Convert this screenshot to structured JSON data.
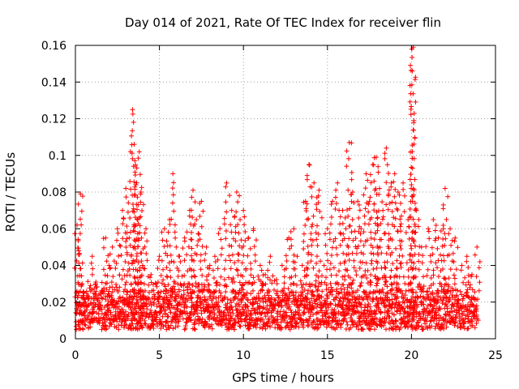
{
  "chart_data": {
    "type": "scatter",
    "title": "Day 014 of 2021, Rate Of TEC Index for receiver flin",
    "xlabel": "GPS time / hours",
    "ylabel": "ROTI / TECUs",
    "xlim": [
      0,
      25
    ],
    "ylim": [
      0,
      0.16
    ],
    "xticks": [
      0,
      5,
      10,
      15,
      20,
      25
    ],
    "xtick_labels": [
      "0",
      "5",
      "10",
      "15",
      "20",
      "25"
    ],
    "yticks": [
      0,
      0.02,
      0.04,
      0.06,
      0.08,
      0.1,
      0.12,
      0.14,
      0.16
    ],
    "ytick_labels": [
      "0",
      "0.02",
      "0.04",
      "0.06",
      "0.08",
      "0.1",
      "0.12",
      "0.14",
      "0.16"
    ],
    "grid": true,
    "marker": "plus",
    "color": "#ff0000",
    "series": [
      {
        "name": "ROTI",
        "x": [
          0.1,
          0.2,
          0.3,
          0.4,
          0.5,
          0.6,
          0.8,
          1.0,
          1.2,
          1.5,
          1.8,
          2.0,
          2.2,
          2.5,
          2.8,
          3.0,
          3.2,
          3.4,
          3.5,
          3.6,
          3.7,
          3.8,
          3.9,
          4.0,
          4.2,
          4.5,
          4.8,
          5.0,
          5.3,
          5.6,
          5.8,
          6.0,
          6.2,
          6.5,
          6.8,
          7.0,
          7.2,
          7.5,
          7.8,
          8.0,
          8.3,
          8.6,
          9.0,
          9.3,
          9.6,
          9.8,
          10.0,
          10.3,
          10.6,
          11.0,
          11.3,
          11.6,
          12.0,
          12.3,
          12.7,
          13.0,
          13.2,
          13.5,
          13.7,
          13.9,
          14.2,
          14.5,
          14.8,
          15.0,
          15.3,
          15.6,
          15.9,
          16.1,
          16.3,
          16.5,
          16.8,
          17.0,
          17.3,
          17.5,
          17.7,
          17.9,
          18.1,
          18.3,
          18.5,
          18.8,
          19.0,
          19.2,
          19.5,
          19.8,
          20.0,
          20.05,
          20.1,
          20.3,
          20.6,
          21.0,
          21.3,
          21.6,
          21.9,
          22.0,
          22.3,
          22.6,
          23.0,
          23.3,
          23.6,
          23.9
        ],
        "y": [
          0.062,
          0.048,
          0.079,
          0.03,
          0.025,
          0.02,
          0.022,
          0.045,
          0.03,
          0.025,
          0.055,
          0.04,
          0.05,
          0.06,
          0.07,
          0.082,
          0.055,
          0.125,
          0.106,
          0.084,
          0.065,
          0.102,
          0.08,
          0.04,
          0.06,
          0.035,
          0.03,
          0.045,
          0.06,
          0.065,
          0.09,
          0.05,
          0.045,
          0.055,
          0.07,
          0.081,
          0.065,
          0.075,
          0.05,
          0.04,
          0.045,
          0.06,
          0.085,
          0.07,
          0.08,
          0.065,
          0.07,
          0.055,
          0.06,
          0.04,
          0.035,
          0.045,
          0.03,
          0.04,
          0.055,
          0.06,
          0.045,
          0.04,
          0.075,
          0.095,
          0.085,
          0.081,
          0.04,
          0.06,
          0.075,
          0.085,
          0.07,
          0.06,
          0.107,
          0.08,
          0.075,
          0.06,
          0.09,
          0.075,
          0.095,
          0.099,
          0.082,
          0.07,
          0.104,
          0.085,
          0.09,
          0.08,
          0.085,
          0.065,
          0.084,
          0.146,
          0.159,
          0.07,
          0.05,
          0.06,
          0.065,
          0.055,
          0.06,
          0.082,
          0.06,
          0.055,
          0.04,
          0.045,
          0.035,
          0.05
        ]
      }
    ],
    "baseline_band": {
      "y_min": 0.005,
      "y_max": 0.03
    }
  }
}
